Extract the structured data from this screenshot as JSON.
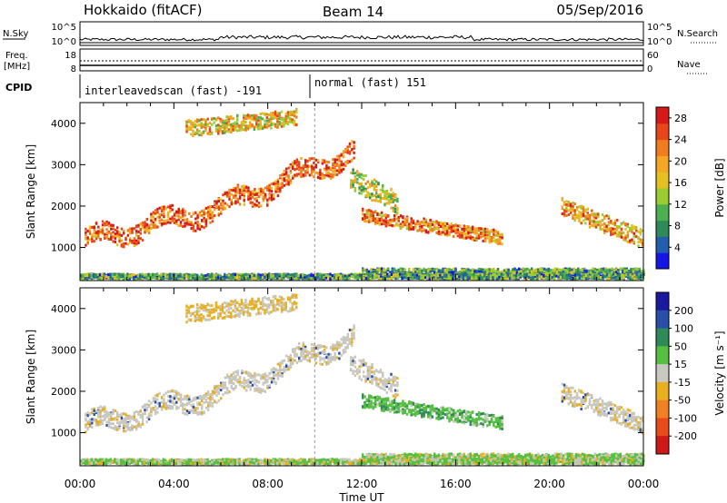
{
  "header": {
    "station": "Hokkaido (fitACF)",
    "beam": "Beam 14",
    "date": "05/Sep/2016"
  },
  "status_panels": {
    "nsky_label": "N.Sky",
    "nsearch_label": "N.Search",
    "noise_ticks": [
      "10^5",
      "10^0"
    ],
    "freq_label_1": "Freq.",
    "freq_label_2": "[MHz]",
    "freq_ticks": [
      "18",
      "8"
    ],
    "nave_label": "Nave",
    "nave_ticks": [
      "60",
      "0"
    ],
    "cpid_label": "CPID",
    "cpid_segments": [
      {
        "label": "interleavedscan (fast) -191",
        "start_hour": 0,
        "end_hour": 10
      },
      {
        "label": "normal (fast) 151",
        "start_hour": 10,
        "end_hour": 24
      }
    ]
  },
  "chart_data": [
    {
      "type": "heatmap",
      "name": "power-panel",
      "xlabel": "Time UT",
      "ylabel": "Slant Range [km]",
      "xlim": [
        0,
        24
      ],
      "ylim": [
        200,
        4500
      ],
      "x_ticks": [
        "00:00",
        "04:00",
        "08:00",
        "12:00",
        "16:00",
        "20:00",
        "00:00"
      ],
      "y_ticks": [
        1000,
        2000,
        3000,
        4000
      ],
      "colorbar": {
        "label": "Power [dB]",
        "ticks": [
          4,
          8,
          12,
          16,
          20,
          24,
          28
        ],
        "range": [
          0,
          30
        ],
        "colors": [
          "#1515e6",
          "#1f5fae",
          "#2e8b57",
          "#4caf50",
          "#9acd32",
          "#e6c020",
          "#f5a623",
          "#f07c1e",
          "#e8451a",
          "#d61a1a"
        ]
      }
    },
    {
      "type": "heatmap",
      "name": "velocity-panel",
      "xlabel": "Time UT",
      "ylabel": "Slant Range [km]",
      "xlim": [
        0,
        24
      ],
      "ylim": [
        200,
        4500
      ],
      "x_ticks": [
        "00:00",
        "04:00",
        "08:00",
        "12:00",
        "16:00",
        "20:00",
        "00:00"
      ],
      "y_ticks": [
        1000,
        2000,
        3000,
        4000
      ],
      "colorbar": {
        "label": "Velocity [m s⁻¹]",
        "ticks": [
          "200",
          "100",
          "50",
          "15",
          "-15",
          "-50",
          "-100",
          "-200"
        ],
        "colors": [
          "#1a1aa0",
          "#2a4fa8",
          "#2e8b57",
          "#55c040",
          "#c8c8c0",
          "#e8b020",
          "#f08020",
          "#e84a1a",
          "#d01818"
        ]
      }
    }
  ]
}
